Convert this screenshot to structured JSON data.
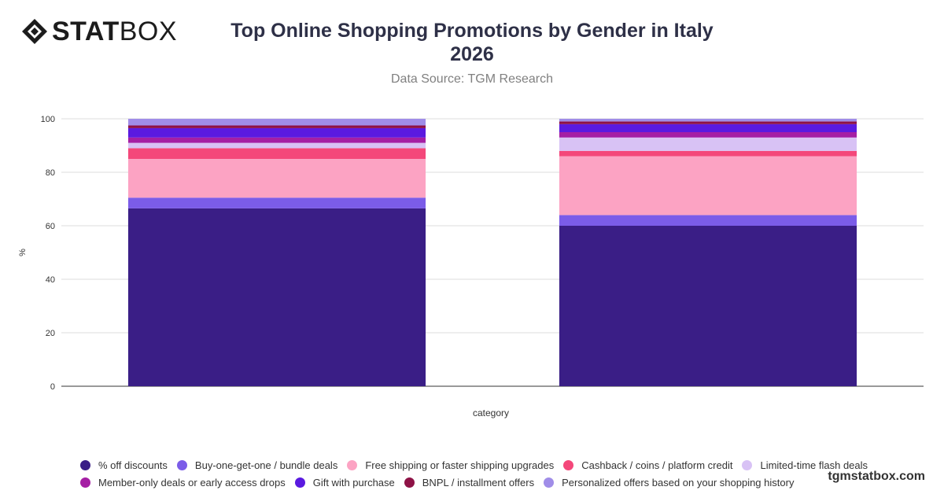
{
  "header": {
    "logo_text_bold": "STAT",
    "logo_text_light": "BOX",
    "title_line1": "Top Online Shopping Promotions by Gender in Italy",
    "title_line2": "2026",
    "subtitle": "Data Source: TGM Research"
  },
  "watermark": "tgmstatbox.com",
  "chart_data": {
    "type": "bar",
    "stacked": true,
    "categories": [
      "",
      ""
    ],
    "xlabel": "category",
    "ylabel": "%",
    "ylim": [
      0,
      100
    ],
    "yticks": [
      0,
      20,
      40,
      60,
      80,
      100
    ],
    "grid": true,
    "legend_position": "bottom",
    "series": [
      {
        "name": "% off discounts",
        "color": "#3a1e86",
        "values": [
          66.5,
          60.0
        ]
      },
      {
        "name": "Buy-one-get-one / bundle deals",
        "color": "#7b5ce8",
        "values": [
          4.0,
          4.0
        ]
      },
      {
        "name": "Free shipping or faster shipping upgrades",
        "color": "#fca3c3",
        "values": [
          14.5,
          22.0
        ]
      },
      {
        "name": "Cashback / coins / platform credit",
        "color": "#f4477a",
        "values": [
          4.0,
          2.0
        ]
      },
      {
        "name": "Limited-time flash deals",
        "color": "#d8c2f5",
        "values": [
          2.0,
          5.0
        ]
      },
      {
        "name": "Member-only deals or early access drops",
        "color": "#a51fa4",
        "values": [
          2.0,
          2.0
        ]
      },
      {
        "name": "Gift with purchase",
        "color": "#5a1ae0",
        "values": [
          3.5,
          3.0
        ]
      },
      {
        "name": "BNPL / installment offers",
        "color": "#8e1246",
        "values": [
          1.0,
          1.0
        ]
      },
      {
        "name": "Personalized offers based on your shopping history",
        "color": "#a08de8",
        "values": [
          2.5,
          1.0
        ]
      }
    ]
  }
}
